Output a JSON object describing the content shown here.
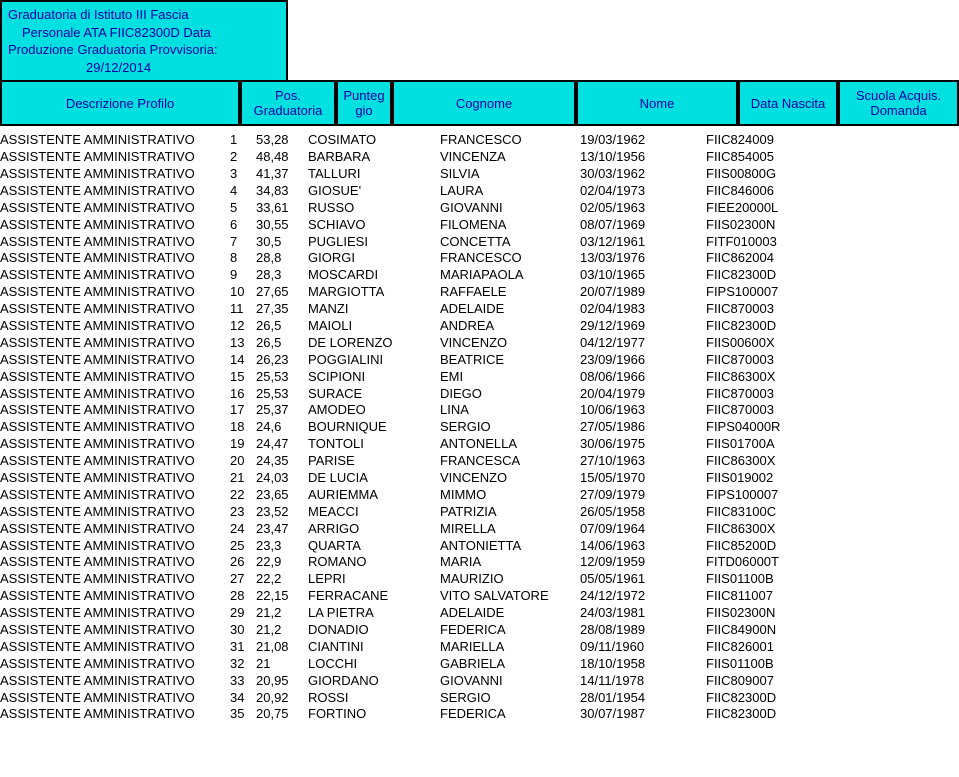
{
  "header": {
    "line1": "Graduatoria di Istituto III Fascia",
    "line2": "Personale ATA FIIC82300D Data",
    "line3": "Produzione Graduatoria Provvisoria:",
    "line4": "29/12/2014"
  },
  "columns": {
    "c1": "Descrizione Profilo",
    "c2": "Pos. Graduatoria",
    "c3": "Punteg gio",
    "c4": "Cognome",
    "c5": "Nome",
    "c6": "Data Nascita",
    "c7": "Scuola Acquis. Domanda"
  },
  "rows": [
    {
      "profilo": "ASSISTENTE AMMINISTRATIVO",
      "pos": "1",
      "pt": "53,28",
      "cog": "COSIMATO",
      "nome": "FRANCESCO",
      "data": "19/03/1962",
      "sc": "FIIC824009"
    },
    {
      "profilo": "ASSISTENTE AMMINISTRATIVO",
      "pos": "2",
      "pt": "48,48",
      "cog": "BARBARA",
      "nome": "VINCENZA",
      "data": "13/10/1956",
      "sc": "FIIC854005"
    },
    {
      "profilo": "ASSISTENTE AMMINISTRATIVO",
      "pos": "3",
      "pt": "41,37",
      "cog": "TALLURI",
      "nome": "SILVIA",
      "data": "30/03/1962",
      "sc": "FIIS00800G"
    },
    {
      "profilo": "ASSISTENTE AMMINISTRATIVO",
      "pos": "4",
      "pt": "34,83",
      "cog": "GIOSUE'",
      "nome": "LAURA",
      "data": "02/04/1973",
      "sc": "FIIC846006"
    },
    {
      "profilo": "ASSISTENTE AMMINISTRATIVO",
      "pos": "5",
      "pt": "33,61",
      "cog": "RUSSO",
      "nome": "GIOVANNI",
      "data": "02/05/1963",
      "sc": "FIEE20000L"
    },
    {
      "profilo": "ASSISTENTE AMMINISTRATIVO",
      "pos": "6",
      "pt": "30,55",
      "cog": "SCHIAVO",
      "nome": "FILOMENA",
      "data": "08/07/1969",
      "sc": "FIIS02300N"
    },
    {
      "profilo": "ASSISTENTE AMMINISTRATIVO",
      "pos": "7",
      "pt": "30,5",
      "cog": "PUGLIESI",
      "nome": "CONCETTA",
      "data": "03/12/1961",
      "sc": "FITF010003"
    },
    {
      "profilo": "ASSISTENTE AMMINISTRATIVO",
      "pos": "8",
      "pt": "28,8",
      "cog": "GIORGI",
      "nome": "FRANCESCO",
      "data": "13/03/1976",
      "sc": "FIIC862004"
    },
    {
      "profilo": "ASSISTENTE AMMINISTRATIVO",
      "pos": "9",
      "pt": "28,3",
      "cog": "MOSCARDI",
      "nome": "MARIAPAOLA",
      "data": "03/10/1965",
      "sc": "FIIC82300D"
    },
    {
      "profilo": "ASSISTENTE AMMINISTRATIVO",
      "pos": "10",
      "pt": "27,65",
      "cog": "MARGIOTTA",
      "nome": "RAFFAELE",
      "data": "20/07/1989",
      "sc": "FIPS100007"
    },
    {
      "profilo": "ASSISTENTE AMMINISTRATIVO",
      "pos": "11",
      "pt": "27,35",
      "cog": "MANZI",
      "nome": "ADELAIDE",
      "data": "02/04/1983",
      "sc": "FIIC870003"
    },
    {
      "profilo": "ASSISTENTE AMMINISTRATIVO",
      "pos": "12",
      "pt": "26,5",
      "cog": "MAIOLI",
      "nome": "ANDREA",
      "data": "29/12/1969",
      "sc": "FIIC82300D"
    },
    {
      "profilo": "ASSISTENTE AMMINISTRATIVO",
      "pos": "13",
      "pt": "26,5",
      "cog": "DE LORENZO",
      "nome": "VINCENZO",
      "data": "04/12/1977",
      "sc": "FIIS00600X"
    },
    {
      "profilo": "ASSISTENTE AMMINISTRATIVO",
      "pos": "14",
      "pt": "26,23",
      "cog": "POGGIALINI",
      "nome": "BEATRICE",
      "data": "23/09/1966",
      "sc": "FIIC870003"
    },
    {
      "profilo": "ASSISTENTE AMMINISTRATIVO",
      "pos": "15",
      "pt": "25,53",
      "cog": "SCIPIONI",
      "nome": "EMI",
      "data": "08/06/1966",
      "sc": "FIIC86300X"
    },
    {
      "profilo": "ASSISTENTE AMMINISTRATIVO",
      "pos": "16",
      "pt": "25,53",
      "cog": "SURACE",
      "nome": "DIEGO",
      "data": "20/04/1979",
      "sc": "FIIC870003"
    },
    {
      "profilo": "ASSISTENTE AMMINISTRATIVO",
      "pos": "17",
      "pt": "25,37",
      "cog": "AMODEO",
      "nome": "LINA",
      "data": "10/06/1963",
      "sc": "FIIC870003"
    },
    {
      "profilo": "ASSISTENTE AMMINISTRATIVO",
      "pos": "18",
      "pt": "24,6",
      "cog": "BOURNIQUE",
      "nome": "SERGIO",
      "data": "27/05/1986",
      "sc": "FIPS04000R"
    },
    {
      "profilo": "ASSISTENTE AMMINISTRATIVO",
      "pos": "19",
      "pt": "24,47",
      "cog": "TONTOLI",
      "nome": "ANTONELLA",
      "data": "30/06/1975",
      "sc": "FIIS01700A"
    },
    {
      "profilo": "ASSISTENTE AMMINISTRATIVO",
      "pos": "20",
      "pt": "24,35",
      "cog": "PARISE",
      "nome": "FRANCESCA",
      "data": "27/10/1963",
      "sc": "FIIC86300X"
    },
    {
      "profilo": "ASSISTENTE AMMINISTRATIVO",
      "pos": "21",
      "pt": "24,03",
      "cog": "DE LUCIA",
      "nome": "VINCENZO",
      "data": "15/05/1970",
      "sc": "FIIS019002"
    },
    {
      "profilo": "ASSISTENTE AMMINISTRATIVO",
      "pos": "22",
      "pt": "23,65",
      "cog": "AURIEMMA",
      "nome": "MIMMO",
      "data": "27/09/1979",
      "sc": "FIPS100007"
    },
    {
      "profilo": "ASSISTENTE AMMINISTRATIVO",
      "pos": "23",
      "pt": "23,52",
      "cog": "MEACCI",
      "nome": "PATRIZIA",
      "data": "26/05/1958",
      "sc": "FIIC83100C"
    },
    {
      "profilo": "ASSISTENTE AMMINISTRATIVO",
      "pos": "24",
      "pt": "23,47",
      "cog": "ARRIGO",
      "nome": "MIRELLA",
      "data": "07/09/1964",
      "sc": "FIIC86300X"
    },
    {
      "profilo": "ASSISTENTE AMMINISTRATIVO",
      "pos": "25",
      "pt": "23,3",
      "cog": "QUARTA",
      "nome": "ANTONIETTA",
      "data": "14/06/1963",
      "sc": "FIIC85200D"
    },
    {
      "profilo": "ASSISTENTE AMMINISTRATIVO",
      "pos": "26",
      "pt": "22,9",
      "cog": "ROMANO",
      "nome": "MARIA",
      "data": "12/09/1959",
      "sc": "FITD06000T"
    },
    {
      "profilo": "ASSISTENTE AMMINISTRATIVO",
      "pos": "27",
      "pt": "22,2",
      "cog": "LEPRI",
      "nome": "MAURIZIO",
      "data": "05/05/1961",
      "sc": "FIIS01100B"
    },
    {
      "profilo": "ASSISTENTE AMMINISTRATIVO",
      "pos": "28",
      "pt": "22,15",
      "cog": "FERRACANE",
      "nome": "VITO SALVATORE",
      "data": "24/12/1972",
      "sc": "FIIC811007"
    },
    {
      "profilo": "ASSISTENTE AMMINISTRATIVO",
      "pos": "29",
      "pt": "21,2",
      "cog": "LA PIETRA",
      "nome": "ADELAIDE",
      "data": "24/03/1981",
      "sc": "FIIS02300N"
    },
    {
      "profilo": "ASSISTENTE AMMINISTRATIVO",
      "pos": "30",
      "pt": "21,2",
      "cog": "DONADIO",
      "nome": "FEDERICA",
      "data": "28/08/1989",
      "sc": "FIIC84900N"
    },
    {
      "profilo": "ASSISTENTE AMMINISTRATIVO",
      "pos": "31",
      "pt": "21,08",
      "cog": "CIANTINI",
      "nome": "MARIELLA",
      "data": "09/11/1960",
      "sc": "FIIC826001"
    },
    {
      "profilo": "ASSISTENTE AMMINISTRATIVO",
      "pos": "32",
      "pt": "21",
      "cog": "LOCCHI",
      "nome": "GABRIELA",
      "data": "18/10/1958",
      "sc": "FIIS01100B"
    },
    {
      "profilo": "ASSISTENTE AMMINISTRATIVO",
      "pos": "33",
      "pt": "20,95",
      "cog": "GIORDANO",
      "nome": "GIOVANNI",
      "data": "14/11/1978",
      "sc": "FIIC809007"
    },
    {
      "profilo": "ASSISTENTE AMMINISTRATIVO",
      "pos": "34",
      "pt": "20,92",
      "cog": "ROSSI",
      "nome": "SERGIO",
      "data": "28/01/1954",
      "sc": "FIIC82300D"
    },
    {
      "profilo": "ASSISTENTE AMMINISTRATIVO",
      "pos": "35",
      "pt": "20,75",
      "cog": "FORTINO",
      "nome": "FEDERICA",
      "data": "30/07/1987",
      "sc": "FIIC82300D"
    }
  ]
}
